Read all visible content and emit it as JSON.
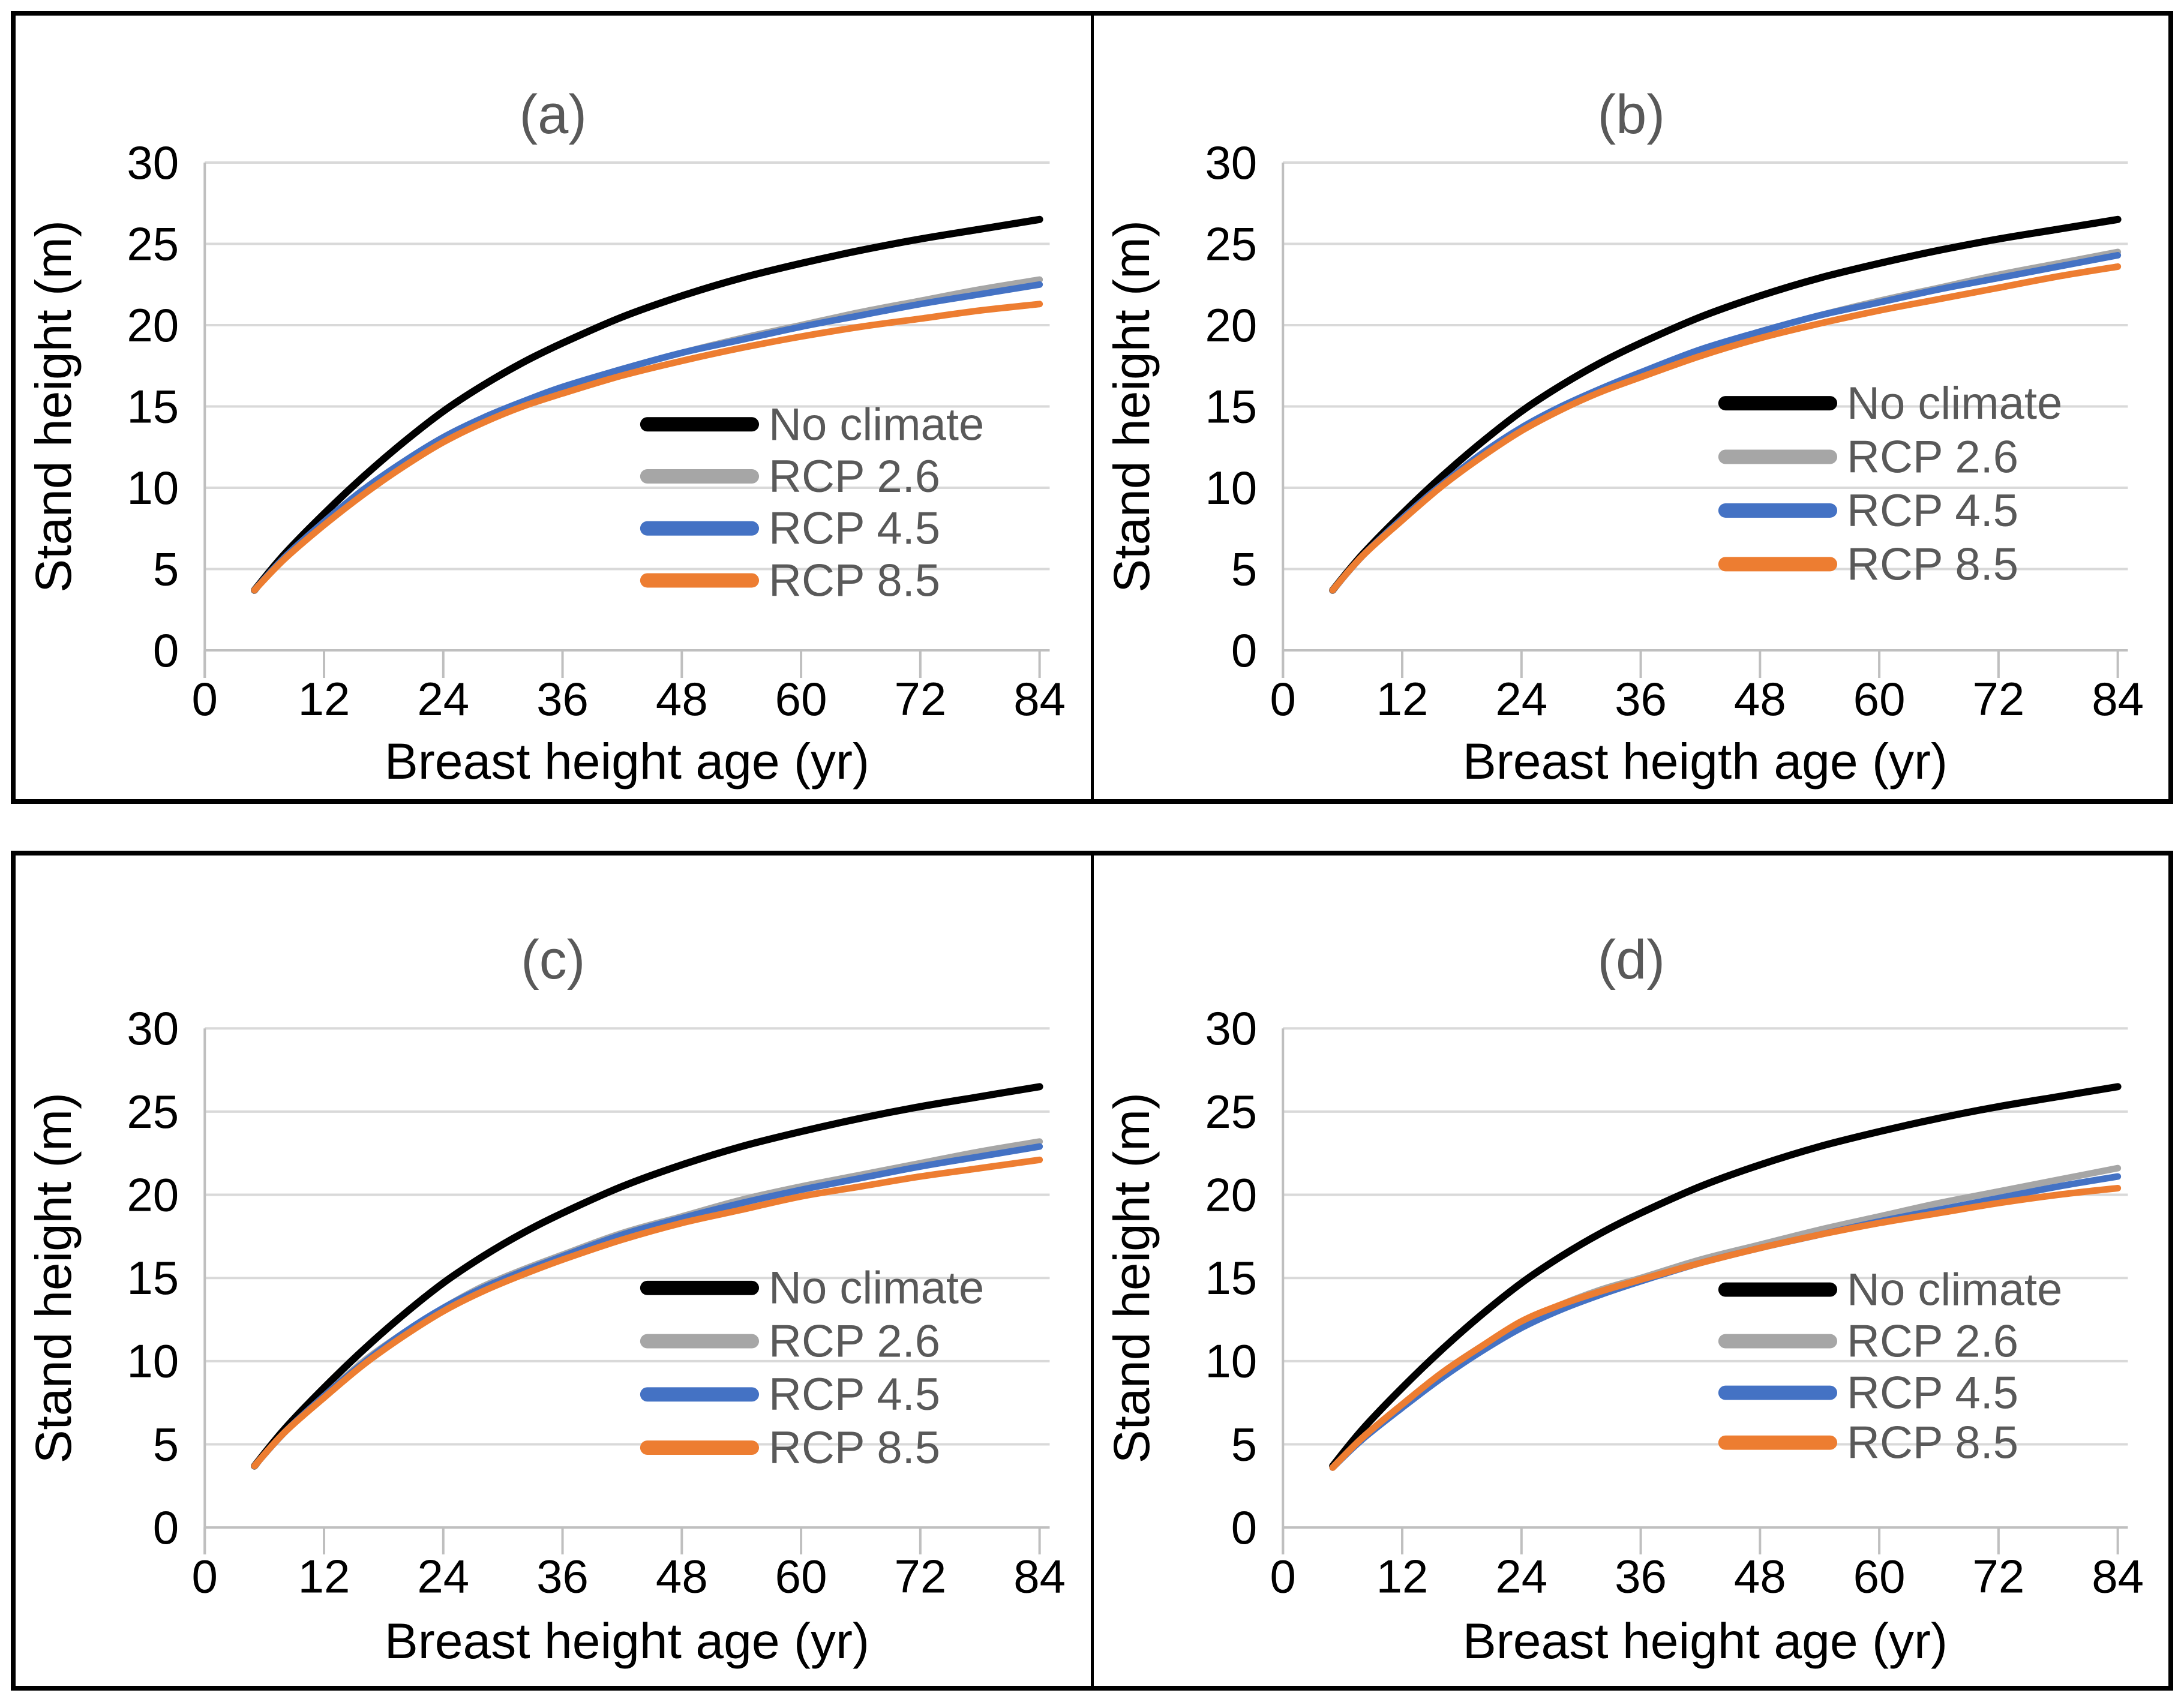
{
  "figure": {
    "background": "#ffffff",
    "box_border_color": "#000000",
    "panel_divider_color": "#000000",
    "gridline_color": "#d9d9d9",
    "axis_line_color": "#bfbfbf",
    "tick_label_color": "#000000",
    "axis_title_color": "#000000",
    "panel_title_color": "#595959",
    "legend_text_color": "#595959",
    "series_colors": {
      "No climate": "#000000",
      "RCP 2.6": "#a6a6a6",
      "RCP 4.5": "#4472c4",
      "RCP 8.5": "#ed7d31"
    },
    "legend_labels": [
      "No climate",
      "RCP 2.6",
      "RCP 4.5",
      "RCP 8.5"
    ]
  },
  "chart_data": [
    {
      "type": "line",
      "panel": "a",
      "title": "(a)",
      "xlabel": "Breast height age (yr)",
      "ylabel": "Stand height (m)",
      "x_ticks": [
        0,
        12,
        24,
        36,
        48,
        60,
        72,
        84
      ],
      "y_ticks": [
        0,
        5,
        10,
        15,
        20,
        25,
        30
      ],
      "xlim": [
        0,
        85
      ],
      "ylim": [
        0,
        30
      ],
      "grid": "horizontal",
      "legend_position": "inside-right-middle",
      "x": [
        5,
        8,
        12,
        16,
        20,
        24,
        28,
        32,
        36,
        42,
        48,
        54,
        60,
        66,
        72,
        78,
        84
      ],
      "series": [
        {
          "name": "No climate",
          "color": "#000000",
          "values": [
            3.7,
            5.9,
            8.4,
            10.7,
            12.8,
            14.7,
            16.3,
            17.7,
            18.9,
            20.5,
            21.8,
            22.9,
            23.8,
            24.6,
            25.3,
            25.9,
            26.5
          ]
        },
        {
          "name": "RCP 2.6",
          "color": "#a6a6a6",
          "values": [
            3.7,
            5.7,
            7.9,
            9.9,
            11.6,
            13.1,
            14.3,
            15.3,
            16.2,
            17.3,
            18.3,
            19.2,
            20.0,
            20.8,
            21.5,
            22.2,
            22.8
          ]
        },
        {
          "name": "RCP 4.5",
          "color": "#4472c4",
          "values": [
            3.7,
            5.7,
            7.9,
            9.9,
            11.6,
            13.1,
            14.3,
            15.3,
            16.2,
            17.3,
            18.3,
            19.1,
            19.9,
            20.6,
            21.3,
            21.9,
            22.5
          ]
        },
        {
          "name": "RCP 8.5",
          "color": "#ed7d31",
          "values": [
            3.7,
            5.6,
            7.7,
            9.6,
            11.3,
            12.8,
            14.0,
            15.0,
            15.8,
            16.9,
            17.8,
            18.6,
            19.3,
            19.9,
            20.4,
            20.9,
            21.3
          ]
        }
      ]
    },
    {
      "type": "line",
      "panel": "b",
      "title": "(b)",
      "xlabel": "Breast heigth age (yr)",
      "ylabel": "Stand height (m)",
      "x_ticks": [
        0,
        12,
        24,
        36,
        48,
        60,
        72,
        84
      ],
      "y_ticks": [
        0,
        5,
        10,
        15,
        20,
        25,
        30
      ],
      "xlim": [
        0,
        85
      ],
      "ylim": [
        0,
        30
      ],
      "grid": "horizontal",
      "legend_position": "inside-right-middle",
      "x": [
        5,
        8,
        12,
        16,
        20,
        24,
        28,
        32,
        36,
        42,
        48,
        54,
        60,
        66,
        72,
        78,
        84
      ],
      "series": [
        {
          "name": "No climate",
          "color": "#000000",
          "values": [
            3.7,
            5.9,
            8.4,
            10.7,
            12.8,
            14.7,
            16.3,
            17.7,
            18.9,
            20.5,
            21.8,
            22.9,
            23.8,
            24.6,
            25.3,
            25.9,
            26.5
          ]
        },
        {
          "name": "RCP 2.6",
          "color": "#a6a6a6",
          "values": [
            3.7,
            5.8,
            8.1,
            10.2,
            12.0,
            13.6,
            14.9,
            16.0,
            17.0,
            18.4,
            19.6,
            20.6,
            21.5,
            22.3,
            23.1,
            23.8,
            24.5
          ]
        },
        {
          "name": "RCP 4.5",
          "color": "#4472c4",
          "values": [
            3.7,
            5.8,
            8.1,
            10.2,
            12.1,
            13.7,
            15.0,
            16.1,
            17.1,
            18.5,
            19.6,
            20.6,
            21.4,
            22.2,
            22.9,
            23.6,
            24.3
          ]
        },
        {
          "name": "RCP 8.5",
          "color": "#ed7d31",
          "values": [
            3.7,
            5.8,
            8.0,
            10.1,
            11.9,
            13.5,
            14.8,
            15.9,
            16.8,
            18.1,
            19.2,
            20.1,
            20.9,
            21.6,
            22.3,
            23.0,
            23.6
          ]
        }
      ]
    },
    {
      "type": "line",
      "panel": "c",
      "title": "(c)",
      "xlabel": "Breast height age (yr)",
      "ylabel": "Stand height (m)",
      "x_ticks": [
        0,
        12,
        24,
        36,
        48,
        60,
        72,
        84
      ],
      "y_ticks": [
        0,
        5,
        10,
        15,
        20,
        25,
        30
      ],
      "xlim": [
        0,
        85
      ],
      "ylim": [
        0,
        30
      ],
      "grid": "horizontal",
      "legend_position": "inside-right-middle",
      "x": [
        5,
        8,
        12,
        16,
        20,
        24,
        28,
        32,
        36,
        42,
        48,
        54,
        60,
        66,
        72,
        78,
        84
      ],
      "series": [
        {
          "name": "No climate",
          "color": "#000000",
          "values": [
            3.7,
            5.9,
            8.4,
            10.7,
            12.8,
            14.7,
            16.3,
            17.7,
            18.9,
            20.5,
            21.8,
            22.9,
            23.8,
            24.6,
            25.3,
            25.9,
            26.5
          ]
        },
        {
          "name": "RCP 2.6",
          "color": "#a6a6a6",
          "values": [
            3.7,
            5.7,
            7.9,
            10.0,
            11.7,
            13.2,
            14.5,
            15.5,
            16.4,
            17.7,
            18.7,
            19.7,
            20.5,
            21.2,
            21.9,
            22.6,
            23.2
          ]
        },
        {
          "name": "RCP 4.5",
          "color": "#4472c4",
          "values": [
            3.7,
            5.7,
            7.9,
            9.9,
            11.7,
            13.2,
            14.4,
            15.4,
            16.3,
            17.6,
            18.6,
            19.5,
            20.3,
            21.0,
            21.7,
            22.3,
            22.9
          ]
        },
        {
          "name": "RCP 8.5",
          "color": "#ed7d31",
          "values": [
            3.7,
            5.7,
            7.8,
            9.8,
            11.5,
            13.0,
            14.2,
            15.2,
            16.1,
            17.3,
            18.3,
            19.1,
            19.9,
            20.5,
            21.1,
            21.6,
            22.1
          ]
        }
      ]
    },
    {
      "type": "line",
      "panel": "d",
      "title": "(d)",
      "xlabel": "Breast height age (yr)",
      "ylabel": "Stand height (m)",
      "x_ticks": [
        0,
        12,
        24,
        36,
        48,
        60,
        72,
        84
      ],
      "y_ticks": [
        0,
        5,
        10,
        15,
        20,
        25,
        30
      ],
      "xlim": [
        0,
        85
      ],
      "ylim": [
        0,
        30
      ],
      "grid": "horizontal",
      "legend_position": "inside-right-middle",
      "x": [
        5,
        8,
        12,
        16,
        20,
        24,
        28,
        32,
        36,
        42,
        48,
        54,
        60,
        66,
        72,
        78,
        84
      ],
      "series": [
        {
          "name": "No climate",
          "color": "#000000",
          "values": [
            3.7,
            5.9,
            8.4,
            10.7,
            12.8,
            14.7,
            16.3,
            17.7,
            18.9,
            20.5,
            21.8,
            22.9,
            23.8,
            24.6,
            25.3,
            25.9,
            26.5
          ]
        },
        {
          "name": "RCP 2.6",
          "color": "#a6a6a6",
          "values": [
            3.6,
            5.4,
            7.4,
            9.3,
            10.9,
            12.3,
            13.4,
            14.3,
            15.0,
            16.1,
            17.0,
            17.9,
            18.7,
            19.5,
            20.2,
            20.9,
            21.6
          ]
        },
        {
          "name": "RCP 4.5",
          "color": "#4472c4",
          "values": [
            3.6,
            5.3,
            7.2,
            9.0,
            10.6,
            12.0,
            13.1,
            14.0,
            14.8,
            15.9,
            16.8,
            17.6,
            18.4,
            19.1,
            19.8,
            20.5,
            21.1
          ]
        },
        {
          "name": "RCP 8.5",
          "color": "#ed7d31",
          "values": [
            3.6,
            5.4,
            7.4,
            9.3,
            10.9,
            12.4,
            13.4,
            14.2,
            14.9,
            15.9,
            16.8,
            17.6,
            18.3,
            18.9,
            19.5,
            20.0,
            20.4
          ]
        }
      ]
    }
  ]
}
